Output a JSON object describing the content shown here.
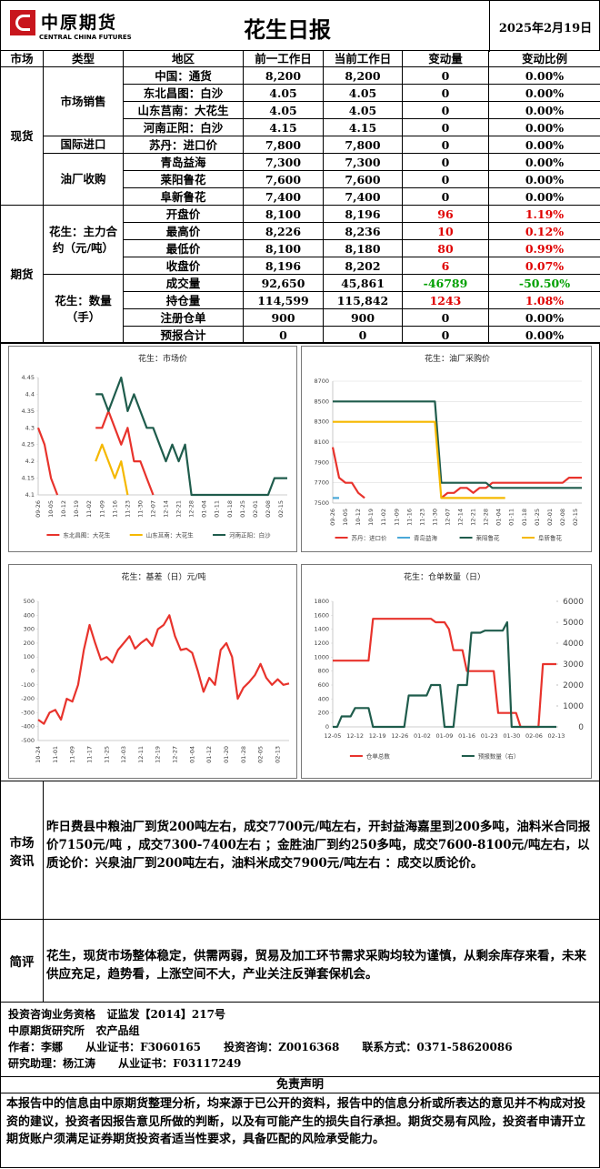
{
  "header": {
    "logo": "中原期货",
    "logo_en": "CENTRAL CHINA FUTURES",
    "title": "花生日报",
    "date": "2025年2月19日"
  },
  "table": {
    "header": [
      "市场",
      "类型",
      "地区",
      "前一工作日",
      "当前工作日",
      "变动量",
      "变动比例"
    ],
    "groups": [
      {
        "market": "现货",
        "types": [
          {
            "name": "市场销售",
            "rows": [
              {
                "cells": [
                  "中国：通货",
                  "8,200",
                  "8,200",
                  "0",
                  "0.00%"
                ]
              },
              {
                "cells": [
                  "东北昌图：白沙",
                  "4.05",
                  "4.05",
                  "0",
                  "0.00%"
                ]
              },
              {
                "cells": [
                  "山东莒南：大花生",
                  "4.05",
                  "4.05",
                  "0",
                  "0.00%"
                ]
              },
              {
                "cells": [
                  "河南正阳：白沙",
                  "4.15",
                  "4.15",
                  "0",
                  "0.00%"
                ]
              }
            ]
          },
          {
            "name": "国际进口",
            "rows": [
              {
                "cells": [
                  "苏丹：进口价",
                  "7,800",
                  "7,800",
                  "0",
                  "0.00%"
                ]
              }
            ]
          },
          {
            "name": "油厂收购",
            "rows": [
              {
                "cells": [
                  "青岛益海",
                  "7,300",
                  "7,300",
                  "0",
                  "0.00%"
                ]
              },
              {
                "cells": [
                  "莱阳鲁花",
                  "7,600",
                  "7,600",
                  "0",
                  "0.00%"
                ]
              },
              {
                "cells": [
                  "阜新鲁花",
                  "7,400",
                  "7,400",
                  "0",
                  "0.00%"
                ]
              }
            ]
          }
        ]
      },
      {
        "market": "期货",
        "types": [
          {
            "name": "花生：主力合约（元/吨）",
            "rows": [
              {
                "cells": [
                  "开盘价",
                  "8,100",
                  "8,196",
                  "96",
                  "1.19%"
                ],
                "change_color": "#e00000"
              },
              {
                "cells": [
                  "最高价",
                  "8,226",
                  "8,236",
                  "10",
                  "0.12%"
                ],
                "change_color": "#e00000"
              },
              {
                "cells": [
                  "最低价",
                  "8,100",
                  "8,180",
                  "80",
                  "0.99%"
                ],
                "change_color": "#e00000"
              },
              {
                "cells": [
                  "收盘价",
                  "8,196",
                  "8,202",
                  "6",
                  "0.07%"
                ],
                "change_color": "#e00000"
              }
            ]
          },
          {
            "name": "花生：数量（手）",
            "rows": [
              {
                "cells": [
                  "成交量",
                  "92,650",
                  "45,861",
                  "-46789",
                  "-50.50%"
                ],
                "change_color": "#00a000"
              },
              {
                "cells": [
                  "持仓量",
                  "114,599",
                  "115,842",
                  "1243",
                  "1.08%"
                ],
                "change_color": "#e00000"
              },
              {
                "cells": [
                  "注册仓单",
                  "900",
                  "900",
                  "0",
                  "0.00%"
                ]
              },
              {
                "cells": [
                  "预报合计",
                  "0",
                  "0",
                  "0",
                  "0.00%"
                ]
              }
            ]
          }
        ]
      }
    ]
  },
  "chart_data": [
    {
      "type": "line",
      "title": "花生：市场价",
      "grid": false,
      "categories": [
        "09-26",
        null,
        "10-05",
        null,
        "10-12",
        null,
        "10-19",
        null,
        "11-02",
        null,
        "11-09",
        null,
        "11-16",
        null,
        "11-23",
        null,
        "11-30",
        null,
        "12-07",
        null,
        "12-14",
        null,
        "12-21",
        null,
        "12-28",
        null,
        "01-04",
        null,
        "01-11",
        null,
        "01-18",
        null,
        "01-25",
        null,
        "02-01",
        null,
        "02-08",
        null,
        "02-15",
        null
      ],
      "ylim": [
        4.1,
        4.45
      ],
      "yticks": [
        4.1,
        4.15,
        4.2,
        4.25,
        4.3,
        4.35,
        4.4,
        4.45
      ],
      "series": [
        {
          "name": "东北昌图：大花生",
          "color": "#e8332c",
          "values": [
            4.3,
            4.25,
            4.15,
            4.1,
            null,
            null,
            null,
            null,
            null,
            4.3,
            4.3,
            4.35,
            4.3,
            4.25,
            4.3,
            4.2,
            4.2,
            4.15,
            4.1,
            null,
            null,
            null,
            null,
            null,
            null,
            null,
            null,
            null,
            null,
            null,
            null,
            null,
            null,
            null,
            null,
            null,
            null,
            null,
            null,
            null
          ]
        },
        {
          "name": "山东莒南：大花生",
          "color": "#f5b800",
          "values": [
            null,
            null,
            null,
            null,
            null,
            null,
            null,
            null,
            null,
            4.2,
            4.25,
            4.2,
            4.15,
            4.2,
            4.1,
            null,
            null,
            null,
            null,
            null,
            null,
            null,
            null,
            null,
            null,
            null,
            null,
            null,
            null,
            null,
            null,
            null,
            null,
            null,
            null,
            null,
            null,
            null,
            null,
            null
          ]
        },
        {
          "name": "河南正阳：白沙",
          "color": "#1f5c4c",
          "values": [
            null,
            null,
            null,
            null,
            null,
            null,
            null,
            null,
            null,
            4.4,
            4.4,
            4.35,
            4.4,
            4.45,
            4.35,
            4.4,
            4.35,
            4.3,
            4.3,
            4.25,
            4.2,
            4.25,
            4.2,
            4.25,
            4.1,
            4.1,
            4.1,
            4.1,
            4.1,
            4.1,
            4.1,
            4.1,
            4.1,
            4.1,
            4.1,
            4.1,
            4.1,
            4.15,
            4.15,
            4.15
          ]
        }
      ]
    },
    {
      "type": "line",
      "title": "花生：油厂采购价",
      "grid": true,
      "categories": [
        "09-26",
        null,
        "10-05",
        null,
        "10-12",
        null,
        "10-19",
        null,
        "11-02",
        null,
        "11-09",
        null,
        "11-16",
        null,
        "11-23",
        null,
        "11-30",
        null,
        "12-07",
        null,
        "12-14",
        null,
        "12-21",
        null,
        "12-28",
        null,
        "01-04",
        null,
        "01-11",
        null,
        "01-18",
        null,
        "01-25",
        null,
        "02-01",
        null,
        "02-08",
        null,
        "02-15",
        null
      ],
      "ylim": [
        7500,
        8700
      ],
      "yticks": [
        7500,
        7700,
        7900,
        8100,
        8300,
        8500,
        8700
      ],
      "series": [
        {
          "name": "苏丹：进口价",
          "color": "#e8332c",
          "values": [
            8050,
            7750,
            7700,
            7700,
            7600,
            7550,
            null,
            null,
            null,
            null,
            null,
            null,
            null,
            null,
            null,
            null,
            null,
            7550,
            7600,
            7600,
            7650,
            7650,
            7600,
            7650,
            7650,
            7700,
            7700,
            7700,
            7700,
            7700,
            7700,
            7700,
            7700,
            7700,
            7700,
            7700,
            7700,
            7750,
            7750,
            7750
          ]
        },
        {
          "name": "青岛益海",
          "color": "#4aa8d8",
          "values": [
            7550,
            7550,
            null,
            null,
            null,
            null,
            null,
            null,
            null,
            null,
            null,
            null,
            null,
            null,
            null,
            null,
            null,
            null,
            null,
            null,
            null,
            null,
            null,
            null,
            null,
            null,
            null,
            null,
            null,
            null,
            null,
            null,
            null,
            null,
            null,
            null,
            null,
            null,
            null,
            null
          ]
        },
        {
          "name": "莱阳鲁花",
          "color": "#1f5c4c",
          "values": [
            8500,
            8500,
            8500,
            8500,
            8500,
            8500,
            8500,
            8500,
            8500,
            8500,
            8500,
            8500,
            8500,
            8500,
            8500,
            8500,
            8500,
            7700,
            7700,
            7700,
            7700,
            7700,
            7700,
            7700,
            7700,
            7650,
            7650,
            7650,
            7650,
            7650,
            7650,
            7650,
            7650,
            7650,
            7650,
            7650,
            7650,
            7650,
            7650,
            7650
          ]
        },
        {
          "name": "阜新鲁花",
          "color": "#f5b800",
          "values": [
            8300,
            8300,
            8300,
            8300,
            8300,
            8300,
            8300,
            8300,
            8300,
            8300,
            8300,
            8300,
            8300,
            8300,
            8300,
            8300,
            8300,
            7550,
            7550,
            7550,
            7550,
            7550,
            7550,
            7550,
            7550,
            7550,
            7550,
            7550,
            null,
            null,
            null,
            null,
            null,
            null,
            null,
            null,
            null,
            null,
            null,
            null
          ]
        }
      ]
    },
    {
      "type": "line",
      "title": "花生：基差（日）元/吨",
      "grid": false,
      "color": "#e8332c",
      "categories": [
        "10-24",
        null,
        null,
        "11-01",
        null,
        null,
        "11-09",
        null,
        null,
        "11-17",
        null,
        null,
        "11-25",
        null,
        null,
        "12-03",
        null,
        null,
        "12-11",
        null,
        null,
        "12-19",
        null,
        null,
        "12-27",
        null,
        null,
        "01-04",
        null,
        null,
        "01-12",
        null,
        null,
        "01-20",
        null,
        null,
        "01-28",
        null,
        null,
        "02-05",
        null,
        null,
        "02-13",
        null,
        null
      ],
      "ylim": [
        -500,
        500
      ],
      "yticks": [
        -500,
        -400,
        -300,
        -200,
        -100,
        0,
        100,
        200,
        300,
        400,
        500
      ],
      "values": [
        -350,
        -380,
        -300,
        -280,
        -350,
        -200,
        -220,
        -100,
        150,
        330,
        200,
        80,
        100,
        60,
        150,
        200,
        250,
        160,
        200,
        230,
        180,
        300,
        330,
        400,
        250,
        150,
        160,
        130,
        0,
        -150,
        -50,
        -100,
        150,
        200,
        100,
        -200,
        -120,
        -80,
        -30,
        50,
        -50,
        -100,
        -60,
        -100,
        -90
      ]
    },
    {
      "type": "line",
      "title": "花生：仓单数量（日）",
      "grid": false,
      "categories": [
        "12-05",
        null,
        null,
        null,
        null,
        "12-12",
        null,
        null,
        null,
        null,
        "12-19",
        null,
        null,
        null,
        null,
        "12-26",
        null,
        null,
        null,
        null,
        "01-02",
        null,
        null,
        null,
        null,
        "01-09",
        null,
        null,
        null,
        null,
        "01-16",
        null,
        null,
        null,
        null,
        "01-23",
        null,
        null,
        null,
        null,
        "01-30",
        null,
        null,
        null,
        null,
        "02-06",
        null,
        null,
        null,
        null,
        "02-13"
      ],
      "ylim": [
        0,
        1800
      ],
      "yticks": [
        0,
        200,
        400,
        600,
        800,
        1000,
        1200,
        1400,
        1600,
        1800
      ],
      "y2lim": [
        0,
        6000
      ],
      "y2ticks": [
        0,
        1000,
        2000,
        3000,
        4000,
        5000,
        6000
      ],
      "series": [
        {
          "name": "仓单总数",
          "color": "#e8332c",
          "values": [
            950,
            950,
            950,
            950,
            950,
            950,
            950,
            950,
            950,
            1550,
            1550,
            1550,
            1550,
            1550,
            1550,
            1550,
            1550,
            1550,
            1550,
            1550,
            1550,
            1550,
            1550,
            1500,
            1500,
            1500,
            1400,
            1100,
            1100,
            1100,
            800,
            800,
            800,
            800,
            800,
            800,
            800,
            200,
            200,
            200,
            200,
            200,
            0,
            0,
            0,
            0,
            0,
            900,
            900,
            900,
            900
          ]
        },
        {
          "name": "预报数量（右）",
          "color": "#1f5c4c",
          "axis": "y2",
          "values": [
            0,
            0,
            500,
            500,
            500,
            900,
            900,
            900,
            900,
            0,
            0,
            0,
            0,
            0,
            0,
            0,
            0,
            1500,
            1500,
            1500,
            1500,
            1500,
            2000,
            2000,
            2000,
            0,
            0,
            0,
            2000,
            2000,
            2000,
            4500,
            4500,
            4500,
            4600,
            4600,
            4600,
            4600,
            4600,
            5000,
            0,
            0,
            0,
            0,
            0,
            0,
            0,
            0,
            0,
            0,
            0
          ]
        }
      ]
    }
  ],
  "news": {
    "label": "市场资讯",
    "text": "昨日费县中粮油厂到货200吨左右，成交7700元/吨左右，开封益海嘉里到200多吨，油料米合同报价7150元/吨 ，成交7300-7400左右 ；金胜油厂到约250多吨，成交7600-8100元/吨左右，以质论价：兴泉油厂到200吨左右，油料米成交7900元/吨左右 ：成交以质论价。"
  },
  "comment": {
    "label": "简评",
    "text": "花生，现货市场整体稳定，供需两弱，贸易及加工环节需求采购均较为谨慎，从剩余库存来看，未来供应充足，趋势看，上涨空间不大，产业关注反弹套保机会。"
  },
  "footer": {
    "lines": [
      "投资咨询业务资格   证监发【2014】217号",
      "中原期货研究所   农产品组",
      "作者：李娜      从业证书：F3060165      投资咨询：Z0016368      联系方式：0371-58620086",
      "研究助理：杨江涛      从业证书：F03117249"
    ]
  },
  "disclaimer": {
    "title": "免责声明",
    "text": "本报告中的信息由中原期货整理分析，均来源于已公开的资料，报告中的信息分析或所表达的意见并不构成对投资的建议，投资者因报告意见所做的判断，以及有可能产生的损失自行承担。期货交易有风险，投资者申请开立期货账户须满足证券期货投资者适当性要求，具备匹配的风险承受能力。"
  }
}
